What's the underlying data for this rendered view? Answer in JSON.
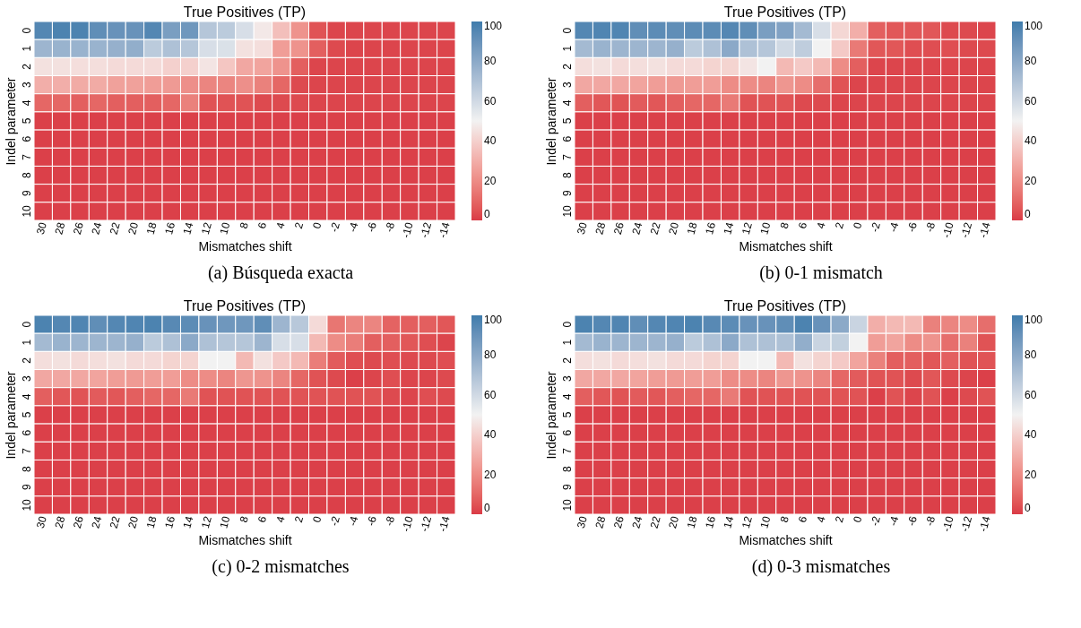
{
  "chart_data": [
    {
      "type": "heatmap",
      "title": "True Positives (TP)",
      "xlabel": "Mismatches shift",
      "ylabel": "Indel parameter",
      "annotations": [
        "(a) Búsqueda exacta"
      ],
      "categories": [
        "30",
        "28",
        "26",
        "24",
        "22",
        "20",
        "18",
        "16",
        "14",
        "12",
        "10",
        "8",
        "6",
        "4",
        "2",
        "0",
        "-2",
        "-4",
        "-6",
        "-8",
        "-10",
        "-12",
        "-14"
      ],
      "y_categories": [
        "0",
        "1",
        "2",
        "3",
        "4",
        "5",
        "6",
        "7",
        "8",
        "9",
        "10"
      ],
      "cells": [
        [
          95,
          97,
          97,
          92,
          90,
          90,
          95,
          85,
          88,
          68,
          66,
          58,
          47,
          35,
          22,
          5,
          2,
          2,
          2,
          2,
          2,
          2,
          2
        ],
        [
          75,
          76,
          76,
          76,
          77,
          78,
          66,
          70,
          68,
          58,
          57,
          45,
          44,
          25,
          22,
          8,
          3,
          2,
          2,
          2,
          2,
          2,
          2
        ],
        [
          45,
          45,
          44,
          44,
          43,
          43,
          43,
          40,
          40,
          46,
          37,
          28,
          27,
          22,
          8,
          2,
          2,
          2,
          2,
          2,
          2,
          2,
          2
        ],
        [
          30,
          30,
          29,
          29,
          26,
          26,
          25,
          24,
          21,
          18,
          18,
          21,
          17,
          10,
          3,
          2,
          2,
          2,
          2,
          2,
          2,
          2,
          2
        ],
        [
          10,
          10,
          8,
          10,
          8,
          8,
          8,
          10,
          17,
          5,
          5,
          5,
          3,
          3,
          3,
          2,
          2,
          2,
          2,
          2,
          2,
          2,
          2
        ],
        [
          1,
          1,
          1,
          1,
          1,
          1,
          1,
          1,
          1,
          1,
          1,
          1,
          1,
          1,
          1,
          1,
          1,
          1,
          1,
          1,
          1,
          1,
          1
        ],
        [
          1,
          1,
          1,
          1,
          1,
          1,
          1,
          1,
          1,
          1,
          1,
          1,
          1,
          1,
          1,
          1,
          1,
          1,
          1,
          1,
          1,
          1,
          1
        ],
        [
          1,
          1,
          1,
          1,
          1,
          1,
          1,
          1,
          1,
          1,
          1,
          1,
          1,
          1,
          1,
          1,
          1,
          1,
          1,
          1,
          1,
          1,
          1
        ],
        [
          1,
          1,
          1,
          1,
          1,
          1,
          1,
          1,
          1,
          1,
          1,
          1,
          1,
          1,
          1,
          1,
          1,
          1,
          1,
          1,
          1,
          1,
          1
        ],
        [
          1,
          1,
          1,
          1,
          1,
          1,
          1,
          1,
          1,
          1,
          1,
          1,
          1,
          1,
          1,
          1,
          1,
          1,
          1,
          1,
          1,
          1,
          1
        ],
        [
          1,
          1,
          1,
          1,
          1,
          1,
          1,
          1,
          1,
          1,
          1,
          1,
          1,
          1,
          1,
          1,
          1,
          1,
          1,
          1,
          1,
          1,
          1
        ]
      ],
      "clim": [
        0,
        100
      ],
      "cticks": [
        0,
        20,
        40,
        60,
        80,
        100
      ],
      "colors": [
        "#da3b46",
        "#f2f2f2",
        "#3f7cac"
      ]
    },
    {
      "type": "heatmap",
      "title": "True Positives (TP)",
      "xlabel": "Mismatches shift",
      "ylabel": "Indel parameter",
      "annotations": [
        "(b) 0-1 mismatch"
      ],
      "categories": [
        "30",
        "28",
        "26",
        "24",
        "22",
        "20",
        "18",
        "16",
        "14",
        "12",
        "10",
        "8",
        "6",
        "4",
        "2",
        "0",
        "-2",
        "-4",
        "-6",
        "-8",
        "-10",
        "-12",
        "-14"
      ],
      "y_categories": [
        "0",
        "1",
        "2",
        "3",
        "4",
        "5",
        "6",
        "7",
        "8",
        "9",
        "10"
      ],
      "cells": [
        [
          95,
          96,
          96,
          92,
          93,
          92,
          93,
          93,
          95,
          92,
          85,
          83,
          73,
          58,
          42,
          30,
          8,
          6,
          6,
          6,
          3,
          3,
          2
        ],
        [
          73,
          76,
          75,
          75,
          75,
          77,
          66,
          70,
          80,
          70,
          68,
          60,
          65,
          50,
          38,
          15,
          6,
          6,
          4,
          4,
          4,
          3,
          3
        ],
        [
          44,
          45,
          43,
          44,
          45,
          43,
          43,
          41,
          41,
          46,
          50,
          33,
          38,
          33,
          20,
          8,
          2,
          2,
          2,
          2,
          2,
          2,
          2
        ],
        [
          28,
          28,
          28,
          27,
          25,
          24,
          25,
          25,
          20,
          20,
          18,
          23,
          20,
          12,
          5,
          2,
          2,
          2,
          2,
          2,
          2,
          2,
          2
        ],
        [
          8,
          6,
          5,
          7,
          6,
          8,
          10,
          10,
          15,
          5,
          5,
          5,
          3,
          3,
          2,
          2,
          2,
          2,
          2,
          2,
          2,
          2,
          2
        ],
        [
          1,
          1,
          1,
          1,
          1,
          1,
          1,
          1,
          1,
          1,
          1,
          1,
          1,
          1,
          1,
          1,
          1,
          1,
          1,
          1,
          1,
          1,
          1
        ],
        [
          1,
          1,
          1,
          1,
          1,
          1,
          1,
          1,
          1,
          1,
          1,
          1,
          1,
          1,
          1,
          1,
          1,
          1,
          1,
          1,
          1,
          1,
          1
        ],
        [
          1,
          1,
          1,
          1,
          1,
          1,
          1,
          1,
          1,
          1,
          1,
          1,
          1,
          1,
          1,
          1,
          1,
          1,
          1,
          1,
          1,
          1,
          1
        ],
        [
          1,
          1,
          1,
          1,
          1,
          1,
          1,
          1,
          1,
          1,
          1,
          1,
          1,
          1,
          1,
          1,
          1,
          1,
          1,
          1,
          1,
          1,
          1
        ],
        [
          1,
          1,
          1,
          1,
          1,
          1,
          1,
          1,
          1,
          1,
          1,
          1,
          1,
          1,
          1,
          1,
          1,
          1,
          1,
          1,
          1,
          1,
          1
        ],
        [
          1,
          1,
          1,
          1,
          1,
          1,
          1,
          1,
          1,
          1,
          1,
          1,
          1,
          1,
          1,
          1,
          1,
          1,
          1,
          1,
          1,
          1,
          1
        ]
      ],
      "clim": [
        0,
        100
      ],
      "cticks": [
        0,
        20,
        40,
        60,
        80,
        100
      ],
      "colors": [
        "#da3b46",
        "#f2f2f2",
        "#3f7cac"
      ]
    },
    {
      "type": "heatmap",
      "title": "True Positives (TP)",
      "xlabel": "Mismatches shift",
      "ylabel": "Indel parameter",
      "annotations": [
        "(c) 0-2 mismatches"
      ],
      "categories": [
        "30",
        "28",
        "26",
        "24",
        "22",
        "20",
        "18",
        "16",
        "14",
        "12",
        "10",
        "8",
        "6",
        "4",
        "2",
        "0",
        "-2",
        "-4",
        "-6",
        "-8",
        "-10",
        "-12",
        "-14"
      ],
      "y_categories": [
        "0",
        "1",
        "2",
        "3",
        "4",
        "5",
        "6",
        "7",
        "8",
        "9",
        "10"
      ],
      "cells": [
        [
          97,
          95,
          96,
          92,
          95,
          96,
          97,
          94,
          93,
          90,
          88,
          88,
          92,
          75,
          67,
          43,
          14,
          18,
          18,
          9,
          8,
          8,
          6
        ],
        [
          73,
          76,
          75,
          75,
          75,
          77,
          66,
          70,
          80,
          70,
          68,
          68,
          75,
          58,
          58,
          33,
          20,
          16,
          8,
          8,
          6,
          4,
          2
        ],
        [
          44,
          45,
          43,
          44,
          45,
          43,
          43,
          41,
          41,
          50,
          50,
          33,
          45,
          38,
          33,
          16,
          7,
          4,
          3,
          4,
          3,
          3,
          4
        ],
        [
          28,
          28,
          28,
          27,
          25,
          24,
          25,
          25,
          20,
          20,
          18,
          23,
          22,
          18,
          10,
          5,
          3,
          1,
          2,
          4,
          2,
          2,
          3
        ],
        [
          8,
          6,
          5,
          7,
          6,
          8,
          10,
          10,
          15,
          5,
          5,
          5,
          5,
          5,
          5,
          5,
          5,
          5,
          5,
          3,
          2,
          4,
          3
        ],
        [
          1,
          1,
          1,
          1,
          1,
          1,
          1,
          1,
          1,
          1,
          1,
          1,
          1,
          1,
          1,
          1,
          1,
          1,
          1,
          1,
          1,
          1,
          1
        ],
        [
          1,
          1,
          1,
          1,
          1,
          1,
          1,
          1,
          1,
          1,
          1,
          1,
          1,
          1,
          1,
          1,
          1,
          1,
          1,
          1,
          1,
          1,
          1
        ],
        [
          1,
          1,
          1,
          1,
          1,
          1,
          1,
          1,
          1,
          1,
          1,
          1,
          1,
          1,
          1,
          1,
          1,
          1,
          1,
          1,
          1,
          1,
          1
        ],
        [
          1,
          1,
          1,
          1,
          1,
          1,
          1,
          1,
          1,
          1,
          1,
          1,
          1,
          1,
          1,
          1,
          1,
          1,
          1,
          1,
          1,
          1,
          1
        ],
        [
          1,
          1,
          1,
          1,
          1,
          1,
          1,
          1,
          1,
          1,
          1,
          1,
          1,
          1,
          1,
          1,
          1,
          1,
          1,
          1,
          1,
          1,
          1
        ],
        [
          1,
          1,
          1,
          1,
          1,
          1,
          1,
          1,
          1,
          1,
          1,
          1,
          1,
          1,
          1,
          1,
          1,
          1,
          1,
          1,
          1,
          1,
          1
        ]
      ],
      "clim": [
        0,
        100
      ],
      "cticks": [
        0,
        20,
        40,
        60,
        80,
        100
      ],
      "colors": [
        "#da3b46",
        "#f2f2f2",
        "#3f7cac"
      ]
    },
    {
      "type": "heatmap",
      "title": "True Positives (TP)",
      "xlabel": "Mismatches shift",
      "ylabel": "Indel parameter",
      "annotations": [
        "(d) 0-3 mismatches"
      ],
      "categories": [
        "30",
        "28",
        "26",
        "24",
        "22",
        "20",
        "18",
        "16",
        "14",
        "12",
        "10",
        "8",
        "6",
        "4",
        "2",
        "0",
        "-2",
        "-4",
        "-6",
        "-8",
        "-10",
        "-12",
        "-14"
      ],
      "y_categories": [
        "0",
        "1",
        "2",
        "3",
        "4",
        "5",
        "6",
        "7",
        "8",
        "9",
        "10"
      ],
      "cells": [
        [
          97,
          95,
          96,
          92,
          95,
          96,
          97,
          94,
          93,
          90,
          90,
          92,
          97,
          90,
          80,
          62,
          30,
          33,
          33,
          17,
          18,
          20,
          12
        ],
        [
          73,
          76,
          75,
          75,
          75,
          77,
          66,
          70,
          80,
          70,
          70,
          70,
          78,
          62,
          64,
          50,
          25,
          27,
          20,
          22,
          12,
          17,
          5
        ],
        [
          44,
          45,
          43,
          44,
          45,
          43,
          43,
          41,
          41,
          50,
          50,
          33,
          45,
          41,
          38,
          27,
          17,
          8,
          8,
          6,
          8,
          5,
          5
        ],
        [
          28,
          28,
          28,
          27,
          25,
          24,
          25,
          25,
          20,
          20,
          18,
          23,
          22,
          18,
          10,
          7,
          5,
          5,
          3,
          6,
          3,
          2,
          1
        ],
        [
          8,
          6,
          5,
          7,
          6,
          8,
          10,
          10,
          15,
          5,
          5,
          5,
          5,
          5,
          5,
          5,
          1,
          5,
          2,
          5,
          1,
          3,
          5
        ],
        [
          1,
          1,
          1,
          1,
          1,
          1,
          1,
          1,
          1,
          1,
          1,
          1,
          1,
          1,
          1,
          1,
          1,
          1,
          1,
          1,
          1,
          1,
          1
        ],
        [
          1,
          1,
          1,
          1,
          1,
          1,
          1,
          1,
          1,
          1,
          1,
          1,
          1,
          1,
          1,
          1,
          1,
          1,
          1,
          1,
          1,
          1,
          1
        ],
        [
          1,
          1,
          1,
          1,
          1,
          1,
          1,
          1,
          1,
          1,
          1,
          1,
          1,
          1,
          1,
          1,
          1,
          1,
          1,
          1,
          1,
          1,
          1
        ],
        [
          1,
          1,
          1,
          1,
          1,
          1,
          1,
          1,
          1,
          1,
          1,
          1,
          1,
          1,
          1,
          1,
          1,
          1,
          1,
          1,
          1,
          1,
          1
        ],
        [
          1,
          1,
          1,
          1,
          1,
          1,
          1,
          1,
          1,
          1,
          1,
          1,
          1,
          1,
          1,
          1,
          1,
          1,
          1,
          1,
          1,
          1,
          1
        ],
        [
          1,
          1,
          1,
          1,
          1,
          1,
          1,
          1,
          1,
          1,
          1,
          1,
          1,
          1,
          1,
          1,
          1,
          1,
          1,
          1,
          1,
          1,
          1
        ]
      ],
      "clim": [
        0,
        100
      ],
      "cticks": [
        0,
        20,
        40,
        60,
        80,
        100
      ],
      "colors": [
        "#da3b46",
        "#f2f2f2",
        "#3f7cac"
      ]
    }
  ]
}
